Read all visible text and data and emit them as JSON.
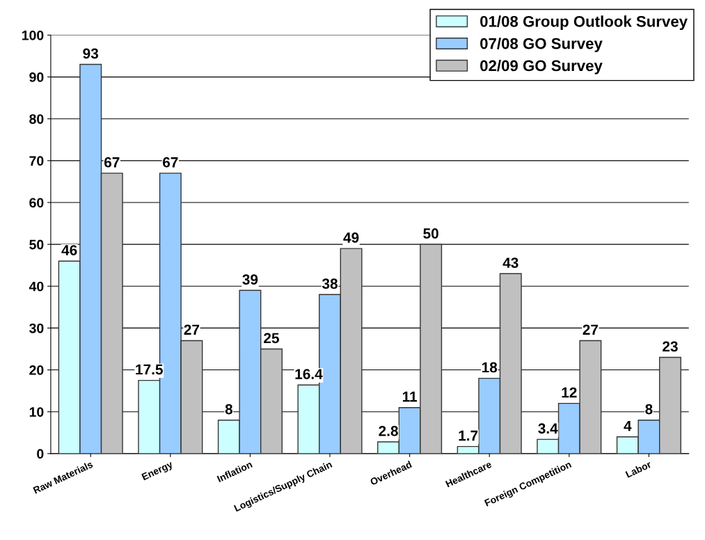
{
  "chart_data": {
    "type": "bar",
    "categories": [
      "Raw Materials",
      "Energy",
      "Inflation",
      "Logistics/Supply Chain",
      "Overhead",
      "Healthcare",
      "Foreign Competition",
      "Labor"
    ],
    "series": [
      {
        "name": "01/08 Group Outlook Survey",
        "color": "#ccffff",
        "values": [
          46,
          17.5,
          8,
          16.4,
          2.8,
          1.7,
          3.4,
          4
        ]
      },
      {
        "name": "07/08 GO Survey",
        "color": "#99ccff",
        "values": [
          93,
          67,
          39,
          38,
          11,
          18,
          12,
          8
        ]
      },
      {
        "name": "02/09 GO Survey",
        "color": "#c0c0c0",
        "values": [
          67,
          27,
          25,
          49,
          50,
          43,
          27,
          23
        ]
      }
    ],
    "ylim": [
      0,
      100
    ],
    "yticks": [
      0,
      10,
      20,
      30,
      40,
      50,
      60,
      70,
      80,
      90,
      100
    ],
    "grid": "y",
    "legend": "top right",
    "data_labels": true
  }
}
